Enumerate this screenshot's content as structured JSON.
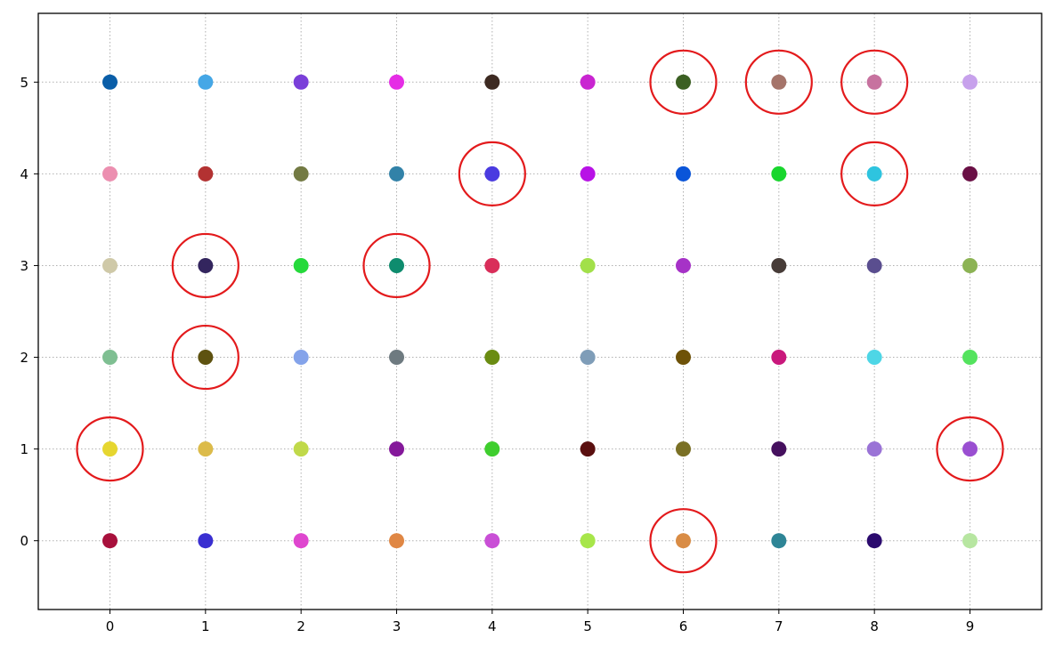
{
  "chart_data": {
    "type": "scatter",
    "title": "",
    "xlabel": "",
    "ylabel": "",
    "xlim": [
      -0.75,
      9.75
    ],
    "ylim": [
      -0.75,
      5.75
    ],
    "grid": true,
    "grid_style": "dotted",
    "x_ticks": [
      "0",
      "1",
      "2",
      "3",
      "4",
      "5",
      "6",
      "7",
      "8",
      "9"
    ],
    "y_ticks": [
      "0",
      "1",
      "2",
      "3",
      "4",
      "5"
    ],
    "highlight_color": "#e31a1c",
    "points": [
      {
        "x": 0,
        "y": 5,
        "color": "#0a5ea8"
      },
      {
        "x": 1,
        "y": 5,
        "color": "#45a7e6"
      },
      {
        "x": 2,
        "y": 5,
        "color": "#7a3fd9"
      },
      {
        "x": 3,
        "y": 5,
        "color": "#e52de5"
      },
      {
        "x": 4,
        "y": 5,
        "color": "#3d2a22"
      },
      {
        "x": 5,
        "y": 5,
        "color": "#c925d1"
      },
      {
        "x": 6,
        "y": 5,
        "color": "#3b5f22"
      },
      {
        "x": 7,
        "y": 5,
        "color": "#a5746a"
      },
      {
        "x": 8,
        "y": 5,
        "color": "#c7729f"
      },
      {
        "x": 9,
        "y": 5,
        "color": "#c7a1ec"
      },
      {
        "x": 0,
        "y": 4,
        "color": "#ec8fb0"
      },
      {
        "x": 1,
        "y": 4,
        "color": "#b33232"
      },
      {
        "x": 2,
        "y": 4,
        "color": "#737a43"
      },
      {
        "x": 3,
        "y": 4,
        "color": "#3282a8"
      },
      {
        "x": 4,
        "y": 4,
        "color": "#4a3be0"
      },
      {
        "x": 5,
        "y": 4,
        "color": "#b812e6"
      },
      {
        "x": 6,
        "y": 4,
        "color": "#0a55d9"
      },
      {
        "x": 7,
        "y": 4,
        "color": "#19d62e"
      },
      {
        "x": 8,
        "y": 4,
        "color": "#2ec4df"
      },
      {
        "x": 9,
        "y": 4,
        "color": "#6a1045"
      },
      {
        "x": 0,
        "y": 3,
        "color": "#cfc9a8"
      },
      {
        "x": 1,
        "y": 3,
        "color": "#33255e"
      },
      {
        "x": 2,
        "y": 3,
        "color": "#25d93b"
      },
      {
        "x": 3,
        "y": 3,
        "color": "#0e8c6e"
      },
      {
        "x": 4,
        "y": 3,
        "color": "#d92e5a"
      },
      {
        "x": 5,
        "y": 3,
        "color": "#a2e04a"
      },
      {
        "x": 6,
        "y": 3,
        "color": "#a632c7"
      },
      {
        "x": 7,
        "y": 3,
        "color": "#473c38"
      },
      {
        "x": 8,
        "y": 3,
        "color": "#5a4e8f"
      },
      {
        "x": 9,
        "y": 3,
        "color": "#8cb354"
      },
      {
        "x": 0,
        "y": 2,
        "color": "#7fbf92"
      },
      {
        "x": 1,
        "y": 2,
        "color": "#5e5210"
      },
      {
        "x": 2,
        "y": 2,
        "color": "#84a3ea"
      },
      {
        "x": 3,
        "y": 2,
        "color": "#6e7a80"
      },
      {
        "x": 4,
        "y": 2,
        "color": "#6a8c12"
      },
      {
        "x": 5,
        "y": 2,
        "color": "#7f9db8"
      },
      {
        "x": 6,
        "y": 2,
        "color": "#6e5208"
      },
      {
        "x": 7,
        "y": 2,
        "color": "#c9187c"
      },
      {
        "x": 8,
        "y": 2,
        "color": "#4ed6e6"
      },
      {
        "x": 9,
        "y": 2,
        "color": "#54e35e"
      },
      {
        "x": 0,
        "y": 1,
        "color": "#e6d630"
      },
      {
        "x": 1,
        "y": 1,
        "color": "#dcbb4a"
      },
      {
        "x": 2,
        "y": 1,
        "color": "#c0d94a"
      },
      {
        "x": 3,
        "y": 1,
        "color": "#84189a"
      },
      {
        "x": 4,
        "y": 1,
        "color": "#3fce2e"
      },
      {
        "x": 5,
        "y": 1,
        "color": "#5a0f0f"
      },
      {
        "x": 6,
        "y": 1,
        "color": "#7a7025"
      },
      {
        "x": 7,
        "y": 1,
        "color": "#45105e"
      },
      {
        "x": 8,
        "y": 1,
        "color": "#9a73d6"
      },
      {
        "x": 9,
        "y": 1,
        "color": "#9a4fd1"
      },
      {
        "x": 0,
        "y": 0,
        "color": "#a8103c"
      },
      {
        "x": 1,
        "y": 0,
        "color": "#3a2fd1"
      },
      {
        "x": 2,
        "y": 0,
        "color": "#df46cf"
      },
      {
        "x": 3,
        "y": 0,
        "color": "#e08744"
      },
      {
        "x": 4,
        "y": 0,
        "color": "#c94fd6"
      },
      {
        "x": 5,
        "y": 0,
        "color": "#a7e64a"
      },
      {
        "x": 6,
        "y": 0,
        "color": "#d98c45"
      },
      {
        "x": 7,
        "y": 0,
        "color": "#2e8596"
      },
      {
        "x": 8,
        "y": 0,
        "color": "#2b0a6e"
      },
      {
        "x": 9,
        "y": 0,
        "color": "#b7e6a1"
      }
    ],
    "highlighted": [
      {
        "x": 6,
        "y": 5
      },
      {
        "x": 7,
        "y": 5
      },
      {
        "x": 8,
        "y": 5
      },
      {
        "x": 4,
        "y": 4
      },
      {
        "x": 8,
        "y": 4
      },
      {
        "x": 1,
        "y": 3
      },
      {
        "x": 3,
        "y": 3
      },
      {
        "x": 1,
        "y": 2
      },
      {
        "x": 0,
        "y": 1
      },
      {
        "x": 9,
        "y": 1
      },
      {
        "x": 6,
        "y": 0
      }
    ]
  }
}
